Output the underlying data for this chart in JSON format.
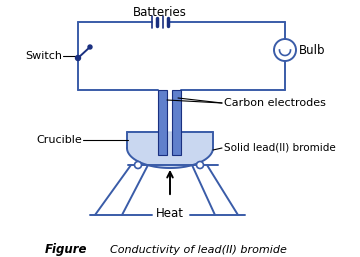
{
  "bg_color": "#ffffff",
  "line_color": "#3a5ca8",
  "dark_color": "#1a3080",
  "electrode_color": "#6080cc",
  "fill_color": "#c0d0ee",
  "title": "Figure",
  "caption": "Conductivity of lead(II) bromide",
  "labels": {
    "batteries": "Batteries",
    "switch": "Switch",
    "bulb": "Bulb",
    "carbon_electrodes": "Carbon electrodes",
    "crucible": "Crucible",
    "solid_lead": "Solid lead(II) bromide",
    "heat": "Heat"
  },
  "figsize": [
    3.6,
    2.57
  ],
  "dpi": 100
}
